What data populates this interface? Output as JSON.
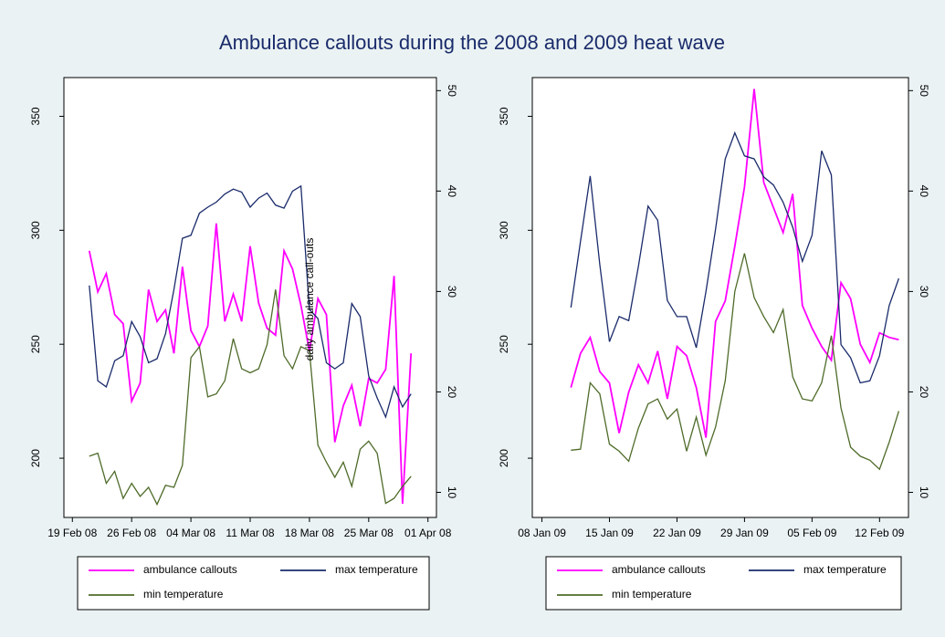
{
  "title": "Ambulance callouts during the 2008 and 2009 heat wave",
  "chart_data": [
    {
      "type": "line",
      "annotation": "daily ambulance call-outs",
      "x": [
        "2008-02-21",
        "2008-02-22",
        "2008-02-23",
        "2008-02-24",
        "2008-02-25",
        "2008-02-26",
        "2008-02-27",
        "2008-02-28",
        "2008-02-29",
        "2008-03-01",
        "2008-03-02",
        "2008-03-03",
        "2008-03-04",
        "2008-03-05",
        "2008-03-06",
        "2008-03-07",
        "2008-03-08",
        "2008-03-09",
        "2008-03-10",
        "2008-03-11",
        "2008-03-12",
        "2008-03-13",
        "2008-03-14",
        "2008-03-15",
        "2008-03-16",
        "2008-03-17",
        "2008-03-18",
        "2008-03-19",
        "2008-03-20",
        "2008-03-21",
        "2008-03-22",
        "2008-03-23",
        "2008-03-24",
        "2008-03-25",
        "2008-03-26",
        "2008-03-27",
        "2008-03-28",
        "2008-03-29",
        "2008-03-30"
      ],
      "xlim": [
        "2008-02-18",
        "2008-04-02"
      ],
      "xticks": [
        {
          "value": "2008-02-19",
          "label": "19 Feb 08"
        },
        {
          "value": "2008-02-26",
          "label": "26 Feb 08"
        },
        {
          "value": "2008-03-04",
          "label": "04 Mar 08"
        },
        {
          "value": "2008-03-11",
          "label": "11 Mar 08"
        },
        {
          "value": "2008-03-18",
          "label": "18 Mar 08"
        },
        {
          "value": "2008-03-25",
          "label": "25 Mar 08"
        },
        {
          "value": "2008-04-01",
          "label": "01 Apr 08"
        }
      ],
      "ylim": [
        174,
        367
      ],
      "yticks": [
        200,
        250,
        300,
        350
      ],
      "y2lim": [
        7.5,
        51.3
      ],
      "y2ticks": [
        10,
        20,
        30,
        40,
        50
      ],
      "series": [
        {
          "name": "ambulance callouts",
          "color": "#ff00ff",
          "values": [
            291,
            273,
            281,
            263,
            259,
            225,
            233,
            274,
            260,
            265,
            246,
            284,
            256,
            249,
            258,
            303,
            260,
            272,
            260,
            293,
            268,
            257,
            254,
            291,
            283,
            267,
            247,
            270,
            263,
            207,
            223,
            232,
            214,
            235,
            233,
            239,
            280,
            180,
            246
          ]
        },
        {
          "name": "max temperature",
          "color": "#1a2b6b",
          "axis": "y2",
          "values": [
            30.6,
            21.1,
            20.5,
            23.1,
            23.6,
            27.0,
            25.5,
            22.9,
            23.3,
            25.8,
            30.2,
            35.3,
            35.6,
            37.8,
            38.4,
            38.9,
            39.7,
            40.2,
            39.9,
            38.4,
            39.3,
            39.8,
            38.6,
            38.3,
            40.0,
            40.5,
            28.2,
            27.3,
            22.9,
            22.3,
            22.9,
            28.8,
            27.5,
            21.6,
            19.4,
            17.5,
            20.5,
            18.5,
            19.8
          ]
        },
        {
          "name": "min temperature",
          "color": "#4f6b2a",
          "axis": "y2",
          "values": [
            13.6,
            13.9,
            10.9,
            12.1,
            9.4,
            10.9,
            9.6,
            10.5,
            8.8,
            10.7,
            10.5,
            12.7,
            23.4,
            24.5,
            19.5,
            19.8,
            21.1,
            25.3,
            22.3,
            21.9,
            22.3,
            24.7,
            30.2,
            23.6,
            22.3,
            24.5,
            24.1,
            14.7,
            13.0,
            11.5,
            13.0,
            10.6,
            14.3,
            15.1,
            13.9,
            8.9,
            9.4,
            10.6,
            11.6
          ]
        }
      ]
    },
    {
      "type": "line",
      "x": [
        "2009-01-11",
        "2009-01-12",
        "2009-01-13",
        "2009-01-14",
        "2009-01-15",
        "2009-01-16",
        "2009-01-17",
        "2009-01-18",
        "2009-01-19",
        "2009-01-20",
        "2009-01-21",
        "2009-01-22",
        "2009-01-23",
        "2009-01-24",
        "2009-01-25",
        "2009-01-26",
        "2009-01-27",
        "2009-01-28",
        "2009-01-29",
        "2009-01-30",
        "2009-01-31",
        "2009-02-01",
        "2009-02-02",
        "2009-02-03",
        "2009-02-04",
        "2009-02-05",
        "2009-02-06",
        "2009-02-07",
        "2009-02-08",
        "2009-02-09",
        "2009-02-10",
        "2009-02-11",
        "2009-02-12",
        "2009-02-13",
        "2009-02-14"
      ],
      "xlim": [
        "2009-01-07",
        "2009-02-15"
      ],
      "xticks": [
        {
          "value": "2009-01-08",
          "label": "08 Jan 09"
        },
        {
          "value": "2009-01-15",
          "label": "15 Jan 09"
        },
        {
          "value": "2009-01-22",
          "label": "22 Jan 09"
        },
        {
          "value": "2009-01-29",
          "label": "29 Jan 09"
        },
        {
          "value": "2009-02-05",
          "label": "05 Feb 09"
        },
        {
          "value": "2009-02-12",
          "label": "12 Feb 09"
        }
      ],
      "ylim": [
        174,
        367
      ],
      "yticks": [
        200,
        250,
        300,
        350
      ],
      "y2lim": [
        7.5,
        51.3
      ],
      "y2ticks": [
        10,
        20,
        30,
        40,
        50
      ],
      "series": [
        {
          "name": "ambulance callouts",
          "color": "#ff00ff",
          "values": [
            231,
            246,
            253,
            238,
            233,
            211,
            229,
            241,
            233,
            247,
            226,
            249,
            245,
            231,
            209,
            260,
            269,
            293,
            319,
            362,
            321,
            310,
            299,
            316,
            267,
            257,
            249,
            243,
            277,
            270,
            250,
            242,
            255,
            253,
            252
          ]
        },
        {
          "name": "max temperature",
          "color": "#1a2b6b",
          "axis": "y2",
          "values": [
            28.4,
            35.0,
            41.5,
            32.7,
            25.0,
            27.5,
            27.1,
            32.5,
            38.5,
            37.1,
            29.1,
            27.5,
            27.5,
            24.4,
            30.0,
            36.2,
            43.2,
            45.8,
            43.5,
            43.2,
            41.4,
            40.6,
            38.9,
            36.4,
            33.0,
            35.6,
            44.0,
            41.6,
            24.7,
            23.4,
            20.9,
            21.1,
            23.6,
            28.6,
            31.3
          ]
        },
        {
          "name": "min temperature",
          "color": "#4f6b2a",
          "axis": "y2",
          "values": [
            14.2,
            14.3,
            20.9,
            19.8,
            14.8,
            14.1,
            13.1,
            16.4,
            18.8,
            19.3,
            17.3,
            18.3,
            14.1,
            17.5,
            13.7,
            16.5,
            21.1,
            30.0,
            33.8,
            29.4,
            27.5,
            25.9,
            28.2,
            21.5,
            19.3,
            19.1,
            20.9,
            25.6,
            18.4,
            14.5,
            13.6,
            13.2,
            12.3,
            15.0,
            18.1
          ]
        }
      ]
    }
  ]
}
